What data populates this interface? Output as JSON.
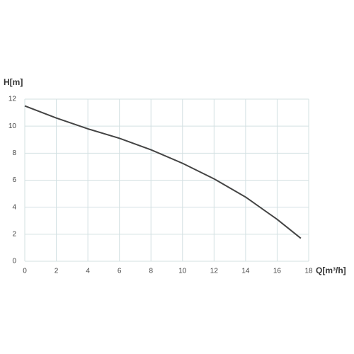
{
  "chart_data": {
    "type": "line",
    "y_label": "H[m]",
    "x_label": "Q[m³/h]",
    "x": [
      0,
      2,
      4,
      6,
      8,
      10,
      12,
      14,
      16,
      17.5
    ],
    "series": [
      {
        "color": "#444444",
        "values": [
          11.5,
          10.6,
          9.8,
          9.1,
          8.25,
          7.25,
          6.1,
          4.75,
          3.1,
          1.7
        ]
      }
    ],
    "xlim": [
      0,
      18
    ],
    "xticks": [
      0,
      2,
      4,
      6,
      8,
      10,
      12,
      14,
      16,
      18
    ],
    "ylim": [
      0,
      12
    ],
    "yticks": [
      0,
      2,
      4,
      6,
      8,
      10,
      12
    ],
    "grid": true
  }
}
